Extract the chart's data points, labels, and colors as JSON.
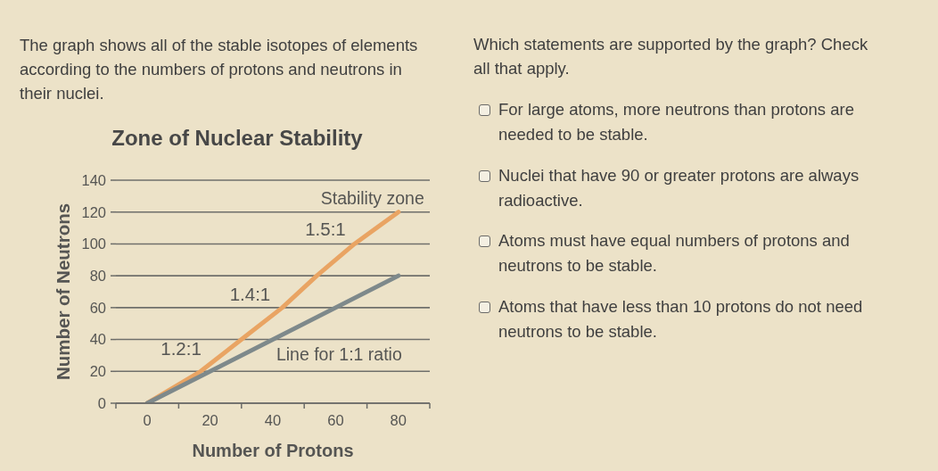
{
  "chart_data": {
    "type": "line",
    "title": "Zone of Nuclear Stability",
    "xlabel": "Number of Protons",
    "ylabel": "Number of Neutrons",
    "series": [
      {
        "name": "Stability zone",
        "color": "#e9a463",
        "x": [
          0,
          17,
          30,
          43,
          54,
          66,
          80
        ],
        "values": [
          0,
          20,
          40,
          60,
          80,
          100,
          120
        ]
      },
      {
        "name": "Line for 1:1 ratio",
        "color": "#7e898b",
        "x": [
          0,
          80
        ],
        "values": [
          0,
          80
        ]
      }
    ],
    "xlim": [
      -10,
      90
    ],
    "xticks": [
      {
        "value": -10,
        "label": null
      },
      0,
      {
        "value": 10,
        "label": null
      },
      20,
      {
        "value": 30,
        "label": null
      },
      40,
      {
        "value": 50,
        "label": null
      },
      60,
      {
        "value": 70,
        "label": null
      },
      80,
      {
        "value": 90,
        "label": null
      }
    ],
    "ylim": [
      0,
      140
    ],
    "yticks": [
      0,
      20,
      40,
      60,
      80,
      100,
      120,
      140
    ],
    "grid": "y",
    "annotations": [
      "The graph shows all of the stable isotopes of elements according to the numbers of protons and neutrons in their nuclei.",
      "Which statements are supported by the graph? Check all that apply.",
      "For large atoms, more neutrons than protons are needed to be stable.",
      "Nuclei that have 90 or greater protons are always radioactive.",
      "Atoms must have equal numbers of protons and neutrons to be stable.",
      "Atoms that have less than 10 protons do not need neutrons to be stable.",
      {
        "text": "1.2:1",
        "x": 17,
        "y": 20
      },
      {
        "text": "1.4:1",
        "x": 39,
        "y": 54
      },
      {
        "text": "1.5:1",
        "x": 63,
        "y": 95
      }
    ]
  }
}
